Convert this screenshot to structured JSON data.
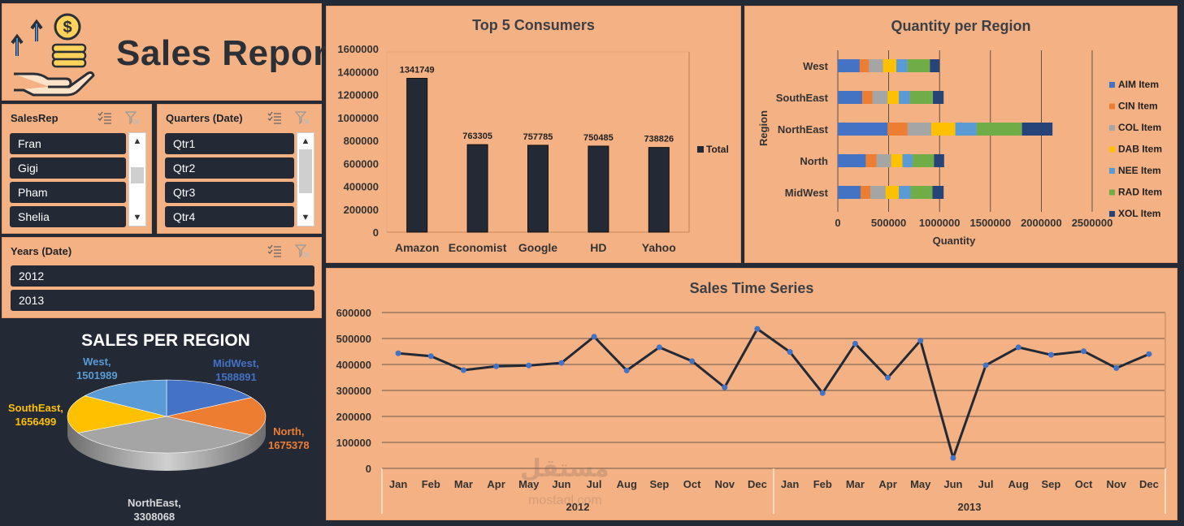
{
  "header": {
    "title": "Sales Report"
  },
  "slicers": {
    "salesrep": {
      "label": "SalesRep",
      "items": [
        "Fran",
        "Gigi",
        "Pham",
        "Shelia"
      ]
    },
    "quarters": {
      "label": "Quarters (Date)",
      "items": [
        "Qtr1",
        "Qtr2",
        "Qtr3",
        "Qtr4"
      ]
    },
    "years": {
      "label": "Years (Date)",
      "items": [
        "2012",
        "2013"
      ]
    }
  },
  "icons": [
    "multi-select-icon",
    "clear-filter-icon",
    "chevron-up-icon",
    "chevron-down-icon",
    "sales-logo-icon"
  ],
  "colors": {
    "panel_bg": "#f4b183",
    "dark": "#232a36",
    "aim": "#4472c4",
    "cin": "#ed7d31",
    "col": "#a5a5a5",
    "dab": "#ffc000",
    "nee": "#5b9bd5",
    "rad": "#70ad47",
    "xol": "#264478",
    "west_label": "#5b9bd5",
    "midwest_label": "#4472c4",
    "north_label": "#ed7d31",
    "southeast_label": "#ffc000",
    "northeast_label": "#d9d9d9"
  },
  "chart_data": [
    {
      "type": "bar",
      "title": "Top 5 Consumers",
      "categories": [
        "Amazon",
        "Economist",
        "Google",
        "HD",
        "Yahoo"
      ],
      "series": [
        {
          "name": "Total",
          "values": [
            1341749,
            763305,
            757785,
            750485,
            738826
          ]
        }
      ],
      "data_labels": [
        "1341749",
        "763305",
        "757785",
        "750485",
        "738826"
      ],
      "ylim": [
        0,
        1600000
      ],
      "yticks": [
        "0",
        "200000",
        "400000",
        "600000",
        "800000",
        "1000000",
        "1200000",
        "1400000",
        "1600000"
      ],
      "legend": "right"
    },
    {
      "type": "bar",
      "orientation": "horizontal-stacked",
      "title": "Quantity per Region",
      "categories": [
        "West",
        "SouthEast",
        "NorthEast",
        "North",
        "MidWest"
      ],
      "xlabel": "Quantity",
      "ylabel": "Region",
      "xlim": [
        0,
        2500000
      ],
      "xticks": [
        "0",
        "500000",
        "1000000",
        "1500000",
        "2000000",
        "2500000"
      ],
      "legend": "right",
      "series": [
        {
          "name": "AIM Item",
          "values": [
            215000,
            240000,
            490000,
            275000,
            225000
          ]
        },
        {
          "name": "CIN Item",
          "values": [
            90000,
            100000,
            195000,
            105000,
            95000
          ]
        },
        {
          "name": "COL Item",
          "values": [
            140000,
            150000,
            235000,
            145000,
            150000
          ]
        },
        {
          "name": "DAB Item",
          "values": [
            130000,
            110000,
            235000,
            110000,
            130000
          ]
        },
        {
          "name": "NEE Item",
          "values": [
            110000,
            110000,
            210000,
            100000,
            115000
          ]
        },
        {
          "name": "RAD Item",
          "values": [
            220000,
            225000,
            445000,
            210000,
            215000
          ]
        },
        {
          "name": "XOL Item",
          "values": [
            95000,
            105000,
            300000,
            100000,
            110000
          ]
        }
      ]
    },
    {
      "type": "line",
      "title": "Sales Time Series",
      "categories": [
        "Jan",
        "Feb",
        "Mar",
        "Apr",
        "May",
        "Jun",
        "Jul",
        "Aug",
        "Sep",
        "Oct",
        "Nov",
        "Dec",
        "Jan",
        "Feb",
        "Mar",
        "Apr",
        "May",
        "Jun",
        "Jul",
        "Aug",
        "Sep",
        "Oct",
        "Nov",
        "Dec"
      ],
      "groups": [
        {
          "label": "2012",
          "count": 12
        },
        {
          "label": "2013",
          "count": 12
        }
      ],
      "series": [
        {
          "name": "Sales",
          "values": [
            443000,
            432000,
            378000,
            393000,
            396000,
            406000,
            507000,
            377000,
            466000,
            413000,
            312000,
            537000,
            448000,
            290000,
            480000,
            349000,
            492000,
            40000,
            397000,
            466000,
            437000,
            451000,
            386000,
            440000
          ]
        }
      ],
      "ylim": [
        0,
        600000
      ],
      "yticks": [
        "0",
        "100000",
        "200000",
        "300000",
        "400000",
        "500000",
        "600000"
      ],
      "grid": true
    },
    {
      "type": "pie",
      "title": "SALES PER REGION",
      "slices": [
        {
          "name": "MidWest",
          "value": 1588891,
          "label": "MidWest,",
          "value_label": "1588891",
          "color": "#4472c4"
        },
        {
          "name": "North",
          "value": 1675378,
          "label": "North,",
          "value_label": "1675378",
          "color": "#ed7d31"
        },
        {
          "name": "NorthEast",
          "value": 3308068,
          "label": "NorthEast,",
          "value_label": "3308068",
          "color": "#a5a5a5"
        },
        {
          "name": "SouthEast",
          "value": 1656499,
          "label": "SouthEast,",
          "value_label": "1656499",
          "color": "#ffc000"
        },
        {
          "name": "West",
          "value": 1501989,
          "label": "West,",
          "value_label": "1501989",
          "color": "#5b9bd5"
        }
      ]
    }
  ],
  "watermark": {
    "text": "مستقل",
    "sub": "mostaql.com"
  }
}
